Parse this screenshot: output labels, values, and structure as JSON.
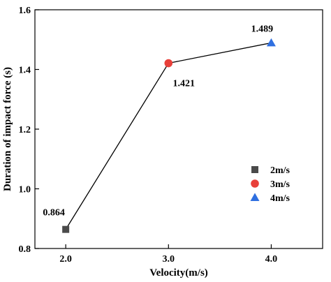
{
  "chart_data": {
    "type": "line",
    "xlabel": "Velocity(m/s)",
    "ylabel": "Duration of impact force (s)",
    "xlim": [
      1.7,
      4.5
    ],
    "ylim": [
      0.8,
      1.6
    ],
    "xticks": [
      2.0,
      3.0,
      4.0
    ],
    "xtick_labels": [
      "2.0",
      "3.0",
      "4.0"
    ],
    "yticks": [
      0.8,
      1.0,
      1.2,
      1.4,
      1.6
    ],
    "ytick_labels": [
      "0.8",
      "1.0",
      "1.2",
      "1.4",
      "1.6"
    ],
    "grid": false,
    "legend_position": "lower-right",
    "line_color": "#000000",
    "points": [
      {
        "x": 2.0,
        "y": 0.864,
        "label": "0.864",
        "legend": "2m/s",
        "marker": "square",
        "color": "#4a4a4a"
      },
      {
        "x": 3.0,
        "y": 1.421,
        "label": "1.421",
        "legend": "3m/s",
        "marker": "circle",
        "color": "#e8403a"
      },
      {
        "x": 4.0,
        "y": 1.489,
        "label": "1.489",
        "legend": "4m/s",
        "marker": "triangle",
        "color": "#2f6fe0"
      }
    ]
  }
}
